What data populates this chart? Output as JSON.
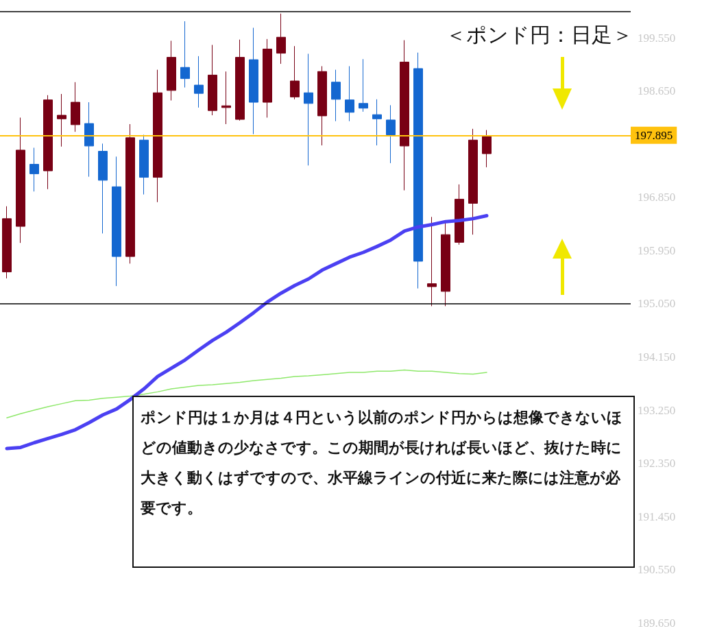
{
  "chart_data": {
    "type": "candlestick",
    "title": "＜ポンド円：日足＞",
    "categories": [
      null,
      null,
      null,
      null,
      null,
      null,
      null,
      null,
      null,
      null,
      null,
      null,
      null,
      null,
      null,
      null,
      null,
      null,
      null,
      null,
      null,
      null,
      null,
      null,
      null,
      null,
      null,
      null,
      null,
      null,
      null,
      null,
      null,
      null,
      null,
      null
    ],
    "series": [
      {
        "ohlc": [
          [
            195.59,
            196.7,
            195.48,
            196.49
          ],
          [
            196.36,
            198.2,
            196.08,
            197.65
          ],
          [
            197.41,
            197.69,
            196.95,
            197.25
          ],
          [
            197.3,
            198.58,
            196.99,
            198.5
          ],
          [
            198.18,
            198.6,
            197.71,
            198.24
          ],
          [
            198.08,
            198.8,
            197.96,
            198.46
          ],
          [
            198.1,
            198.46,
            197.2,
            197.72
          ],
          [
            197.63,
            197.76,
            196.24,
            197.14
          ],
          [
            197.03,
            197.54,
            195.35,
            195.85
          ],
          [
            195.85,
            198.09,
            195.73,
            197.86
          ],
          [
            197.82,
            197.91,
            196.9,
            197.19
          ],
          [
            197.19,
            199.01,
            196.77,
            198.62
          ],
          [
            198.66,
            199.5,
            198.49,
            199.22
          ],
          [
            199.05,
            199.83,
            198.71,
            198.86
          ],
          [
            198.75,
            199.24,
            198.37,
            198.61
          ],
          [
            198.32,
            199.43,
            198.24,
            198.92
          ],
          [
            198.37,
            198.98,
            198.09,
            198.4
          ],
          [
            198.17,
            199.52,
            198.15,
            199.22
          ],
          [
            199.18,
            199.72,
            197.92,
            198.46
          ],
          [
            198.46,
            199.53,
            198.2,
            199.36
          ],
          [
            199.29,
            199.96,
            199.11,
            199.56
          ],
          [
            198.55,
            199.41,
            198.51,
            198.82
          ],
          [
            198.62,
            199.28,
            197.39,
            198.44
          ],
          [
            198.23,
            199.07,
            197.73,
            198.98
          ],
          [
            198.8,
            199.01,
            198.14,
            198.51
          ],
          [
            198.5,
            199.07,
            198.14,
            198.29
          ],
          [
            198.44,
            199.19,
            198.3,
            198.36
          ],
          [
            198.25,
            198.51,
            197.73,
            198.18
          ],
          [
            198.16,
            198.41,
            197.43,
            197.91
          ],
          [
            197.72,
            199.51,
            196.97,
            199.14
          ],
          [
            199.03,
            199.3,
            195.31,
            195.77
          ],
          [
            195.34,
            196.52,
            195.01,
            195.39
          ],
          [
            195.26,
            196.42,
            195.01,
            196.22
          ],
          [
            196.09,
            197.07,
            196.05,
            196.82
          ],
          [
            196.75,
            198.01,
            196.22,
            197.82
          ],
          [
            197.59,
            197.99,
            197.36,
            197.88
          ]
        ],
        "colors": [
          "#780014",
          "#780014",
          "#1467d0",
          "#780014",
          "#780014",
          "#780014",
          "#1467d0",
          "#1467d0",
          "#1467d0",
          "#780014",
          "#1467d0",
          "#780014",
          "#780014",
          "#1467d0",
          "#1467d0",
          "#780014",
          "#780014",
          "#780014",
          "#1467d0",
          "#780014",
          "#780014",
          "#780014",
          "#1467d0",
          "#780014",
          "#1467d0",
          "#1467d0",
          "#1467d0",
          "#1467d0",
          "#1467d0",
          "#780014",
          "#1467d0",
          "#780014",
          "#780014",
          "#780014",
          "#780014",
          "#780014"
        ]
      },
      {
        "type": "line",
        "color": "#4b40f2",
        "values": [
          192.6,
          192.62,
          192.7,
          192.77,
          192.84,
          192.92,
          193.04,
          193.17,
          193.27,
          193.43,
          193.61,
          193.82,
          193.96,
          194.1,
          194.27,
          194.43,
          194.57,
          194.73,
          194.9,
          195.08,
          195.23,
          195.36,
          195.47,
          195.62,
          195.73,
          195.84,
          195.92,
          196.02,
          196.13,
          196.28,
          196.35,
          196.39,
          196.44,
          196.46,
          196.49,
          196.54
        ]
      },
      {
        "type": "line",
        "color": "#8ee86a",
        "values": [
          193.12,
          193.19,
          193.25,
          193.31,
          193.36,
          193.41,
          193.42,
          193.45,
          193.47,
          193.49,
          193.52,
          193.56,
          193.61,
          193.64,
          193.67,
          193.68,
          193.7,
          193.72,
          193.75,
          193.77,
          193.79,
          193.82,
          193.83,
          193.85,
          193.87,
          193.89,
          193.89,
          193.91,
          193.91,
          193.93,
          193.91,
          193.91,
          193.89,
          193.87,
          193.86,
          193.89
        ]
      }
    ],
    "ylim": [
      189.48,
      200.19
    ],
    "yticks": [
      {
        "value": 189.65,
        "label": "189.650"
      },
      {
        "value": 190.55,
        "label": "190.550"
      },
      {
        "value": 191.45,
        "label": "191.450"
      },
      {
        "value": 192.35,
        "label": "192.350"
      },
      {
        "value": 193.25,
        "label": "193.250"
      },
      {
        "value": 194.15,
        "label": "194.150"
      },
      {
        "value": 195.05,
        "label": "195.050"
      },
      {
        "value": 195.95,
        "label": "195.950"
      },
      {
        "value": 196.85,
        "label": "196.850"
      },
      {
        "value": 198.65,
        "label": "198.650"
      },
      {
        "value": 199.55,
        "label": "199.550"
      }
    ],
    "ref_lines": [
      {
        "axis": "y",
        "value": 200.0,
        "color": "#000000"
      },
      {
        "axis": "y",
        "value": 195.05,
        "color": "#000000"
      },
      {
        "axis": "y",
        "value": 197.895,
        "label": "197.895",
        "color": "#ffc20e"
      }
    ],
    "annotations": [
      "ポンド円は１か月は４円という以前のポンド円からは想像できないほどの値動きの少なさです。この期間が長ければ長いほど、抜けた時に大きく動くはずですので、水平線ラインの付近に来た際には注意が必要です。"
    ],
    "tick_labels": "y",
    "grid": false,
    "marker": "none"
  }
}
